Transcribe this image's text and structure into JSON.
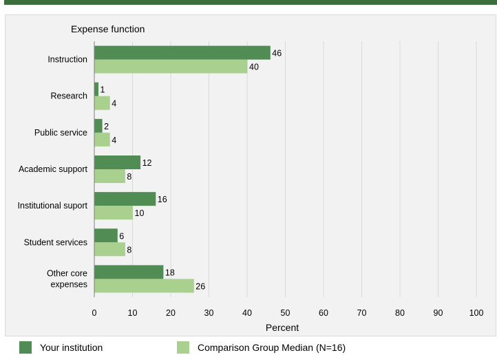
{
  "colors": {
    "primary": "#518c55",
    "secondary": "#a9d08e",
    "band": "#3c6e3e",
    "grid": "#d9d9d9",
    "plot_bg": "#f2f2f2"
  },
  "chart_data": {
    "type": "bar",
    "orientation": "horizontal",
    "category_axis_title": "Expense function",
    "categories": [
      [
        "Instruction"
      ],
      [
        "Research"
      ],
      [
        "Public service"
      ],
      [
        "Academic support"
      ],
      [
        "Institutional suport"
      ],
      [
        "Student services"
      ],
      [
        "Other core",
        "expenses"
      ]
    ],
    "series": [
      {
        "name": "Your institution",
        "values": [
          46,
          1,
          2,
          12,
          16,
          6,
          18
        ]
      },
      {
        "name": "Comparison Group Median (N=16)",
        "values": [
          40,
          4,
          4,
          8,
          10,
          8,
          26
        ]
      }
    ],
    "xlabel": "Percent",
    "xlim": [
      0,
      100
    ],
    "xticks": [
      0,
      10,
      20,
      30,
      40,
      50,
      60,
      70,
      80,
      90,
      100
    ],
    "grid": true,
    "legend": "bottom"
  }
}
